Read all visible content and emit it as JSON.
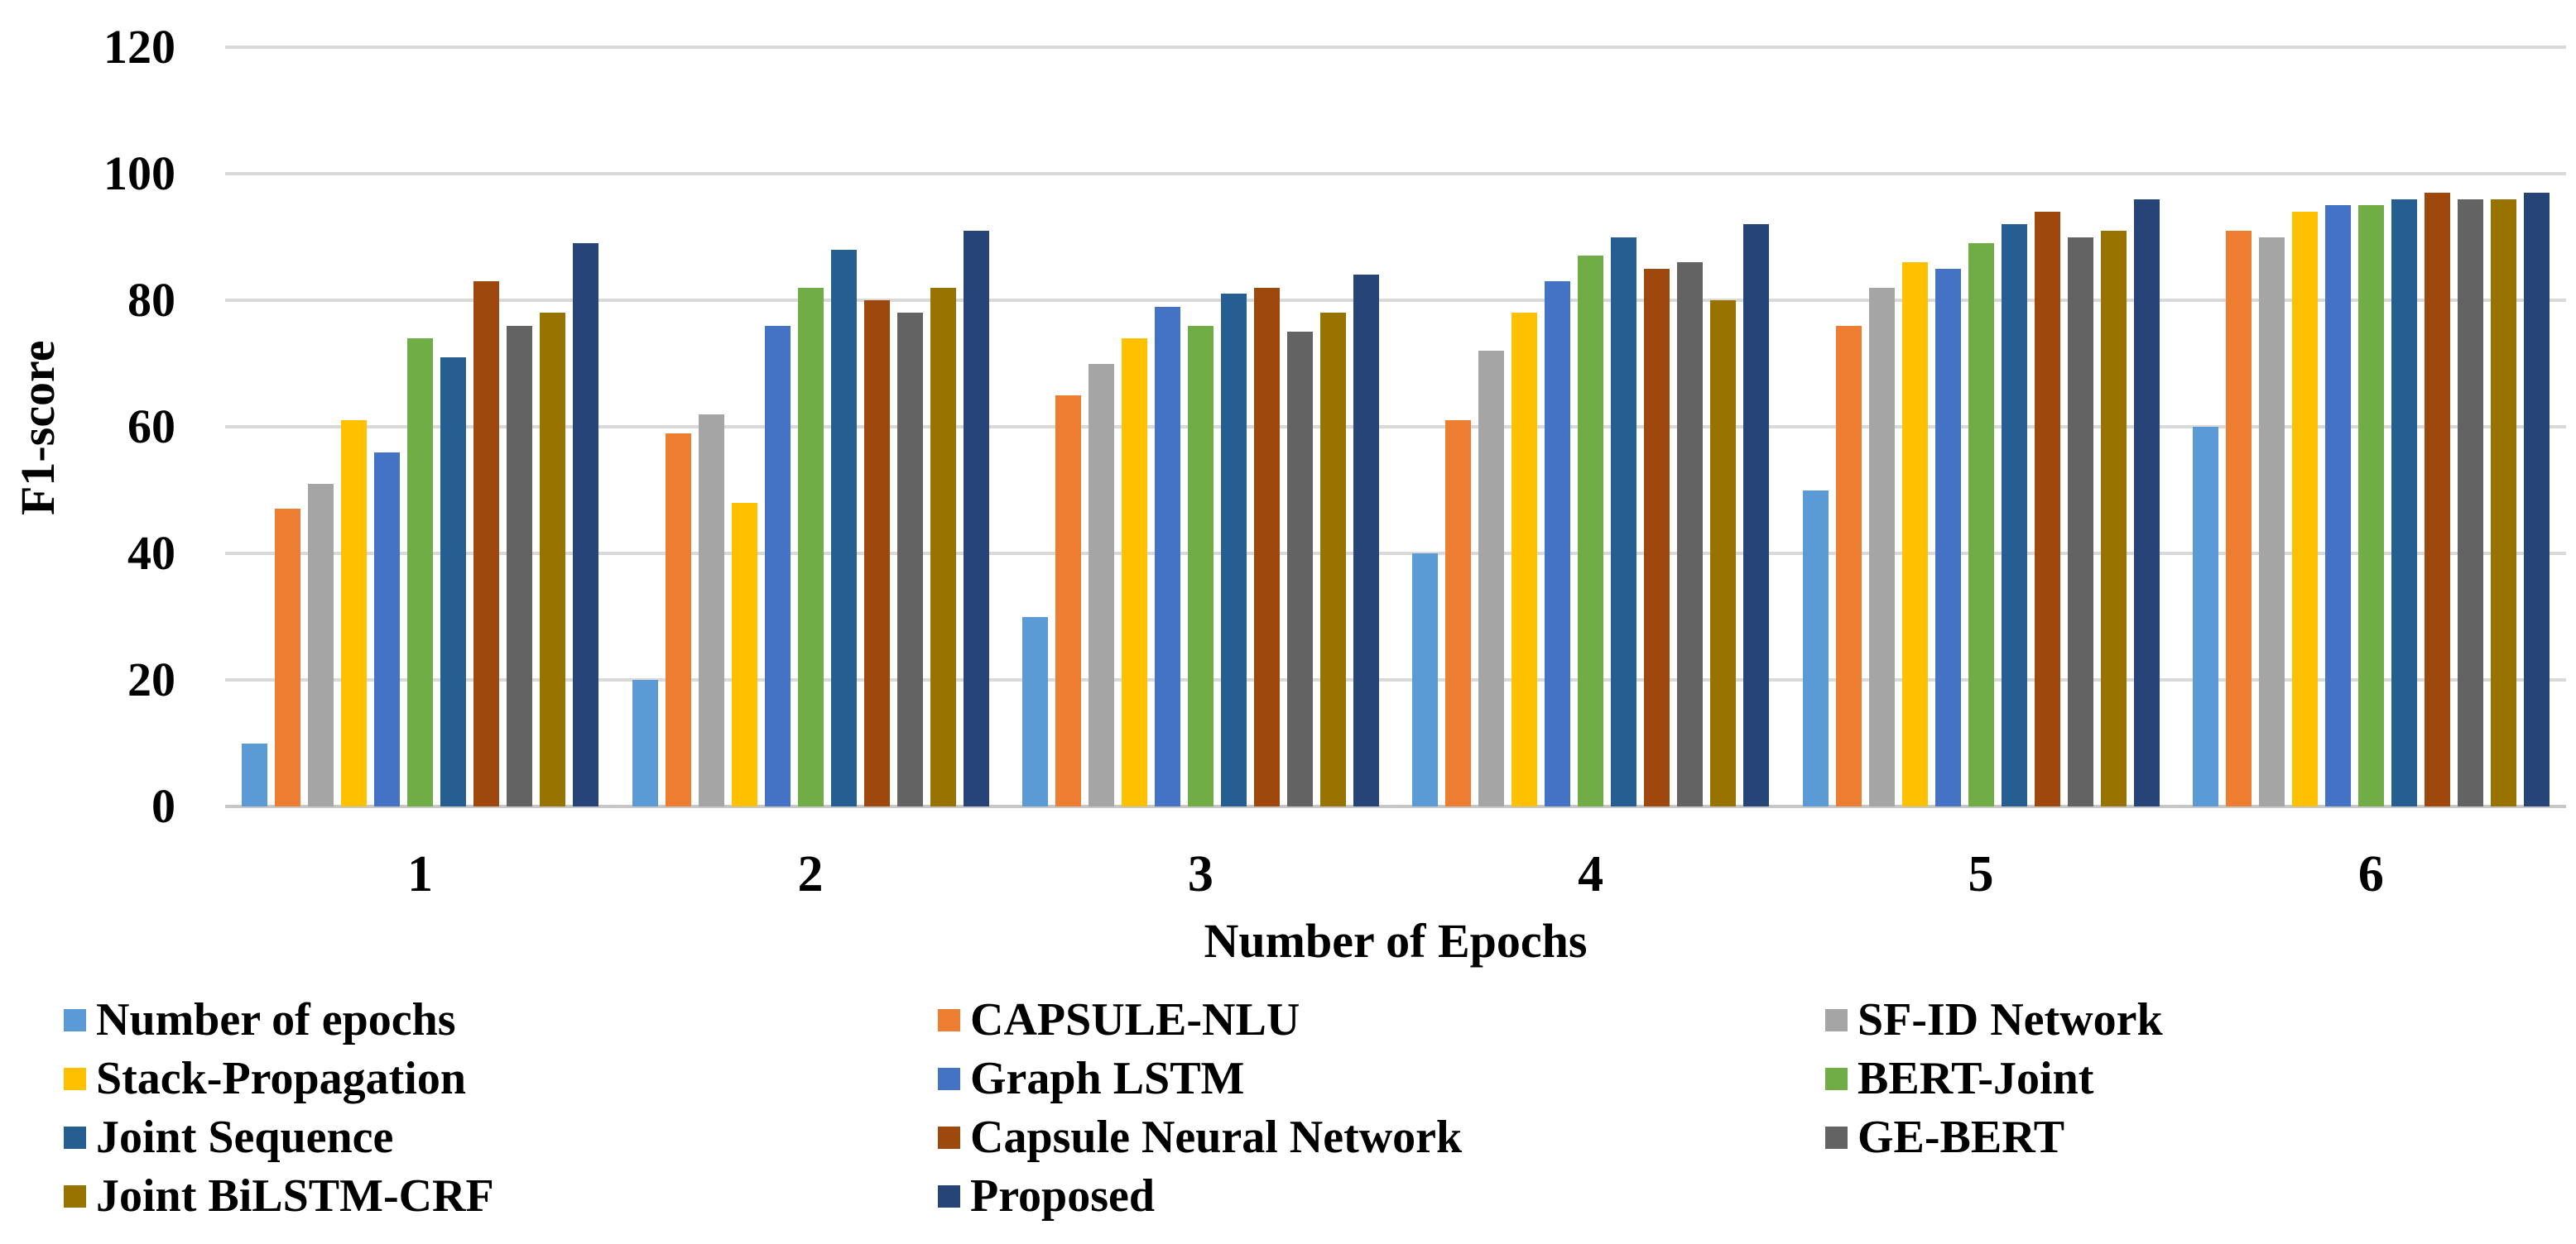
{
  "chart_data": {
    "type": "bar",
    "title": "",
    "xlabel": "Number of Epochs",
    "ylabel": "F1-score",
    "categories": [
      "1",
      "2",
      "3",
      "4",
      "5",
      "6"
    ],
    "ylim": [
      0,
      120
    ],
    "yticks": [
      0,
      20,
      40,
      60,
      80,
      100,
      120
    ],
    "grid": true,
    "legend_position": "bottom",
    "series": [
      {
        "name": "Number of epochs",
        "color": "#5B9BD5",
        "values": [
          10,
          20,
          30,
          40,
          50,
          60
        ]
      },
      {
        "name": "CAPSULE-NLU",
        "color": "#ED7D31",
        "values": [
          47,
          59,
          65,
          61,
          76,
          91
        ]
      },
      {
        "name": "SF-ID Network",
        "color": "#A5A5A5",
        "values": [
          51,
          62,
          70,
          72,
          82,
          90
        ]
      },
      {
        "name": "Stack-Propagation",
        "color": "#FFC000",
        "values": [
          61,
          48,
          74,
          78,
          86,
          94
        ]
      },
      {
        "name": "Graph LSTM",
        "color": "#4472C4",
        "values": [
          56,
          76,
          79,
          83,
          85,
          95
        ]
      },
      {
        "name": "BERT-Joint",
        "color": "#70AD47",
        "values": [
          74,
          82,
          76,
          87,
          89,
          95
        ]
      },
      {
        "name": "Joint Sequence",
        "color": "#255E91",
        "values": [
          71,
          88,
          81,
          90,
          92,
          96
        ]
      },
      {
        "name": "Capsule Neural Network",
        "color": "#9E480E",
        "values": [
          83,
          80,
          82,
          85,
          94,
          97
        ]
      },
      {
        "name": "GE-BERT",
        "color": "#636363",
        "values": [
          76,
          78,
          75,
          86,
          90,
          96
        ]
      },
      {
        "name": "Joint BiLSTM-CRF",
        "color": "#997300",
        "values": [
          78,
          82,
          78,
          80,
          91,
          96
        ]
      },
      {
        "name": "Proposed",
        "color": "#264478",
        "values": [
          89,
          91,
          84,
          92,
          96,
          97
        ]
      }
    ],
    "legend_columns": [
      [
        0,
        3,
        6,
        9
      ],
      [
        1,
        4,
        7,
        10
      ],
      [
        2,
        5,
        8
      ]
    ]
  },
  "colors": {
    "gridline": "#d9d9d9",
    "baseline": "#c6c6c6",
    "text": "#000000",
    "background": "#ffffff"
  }
}
